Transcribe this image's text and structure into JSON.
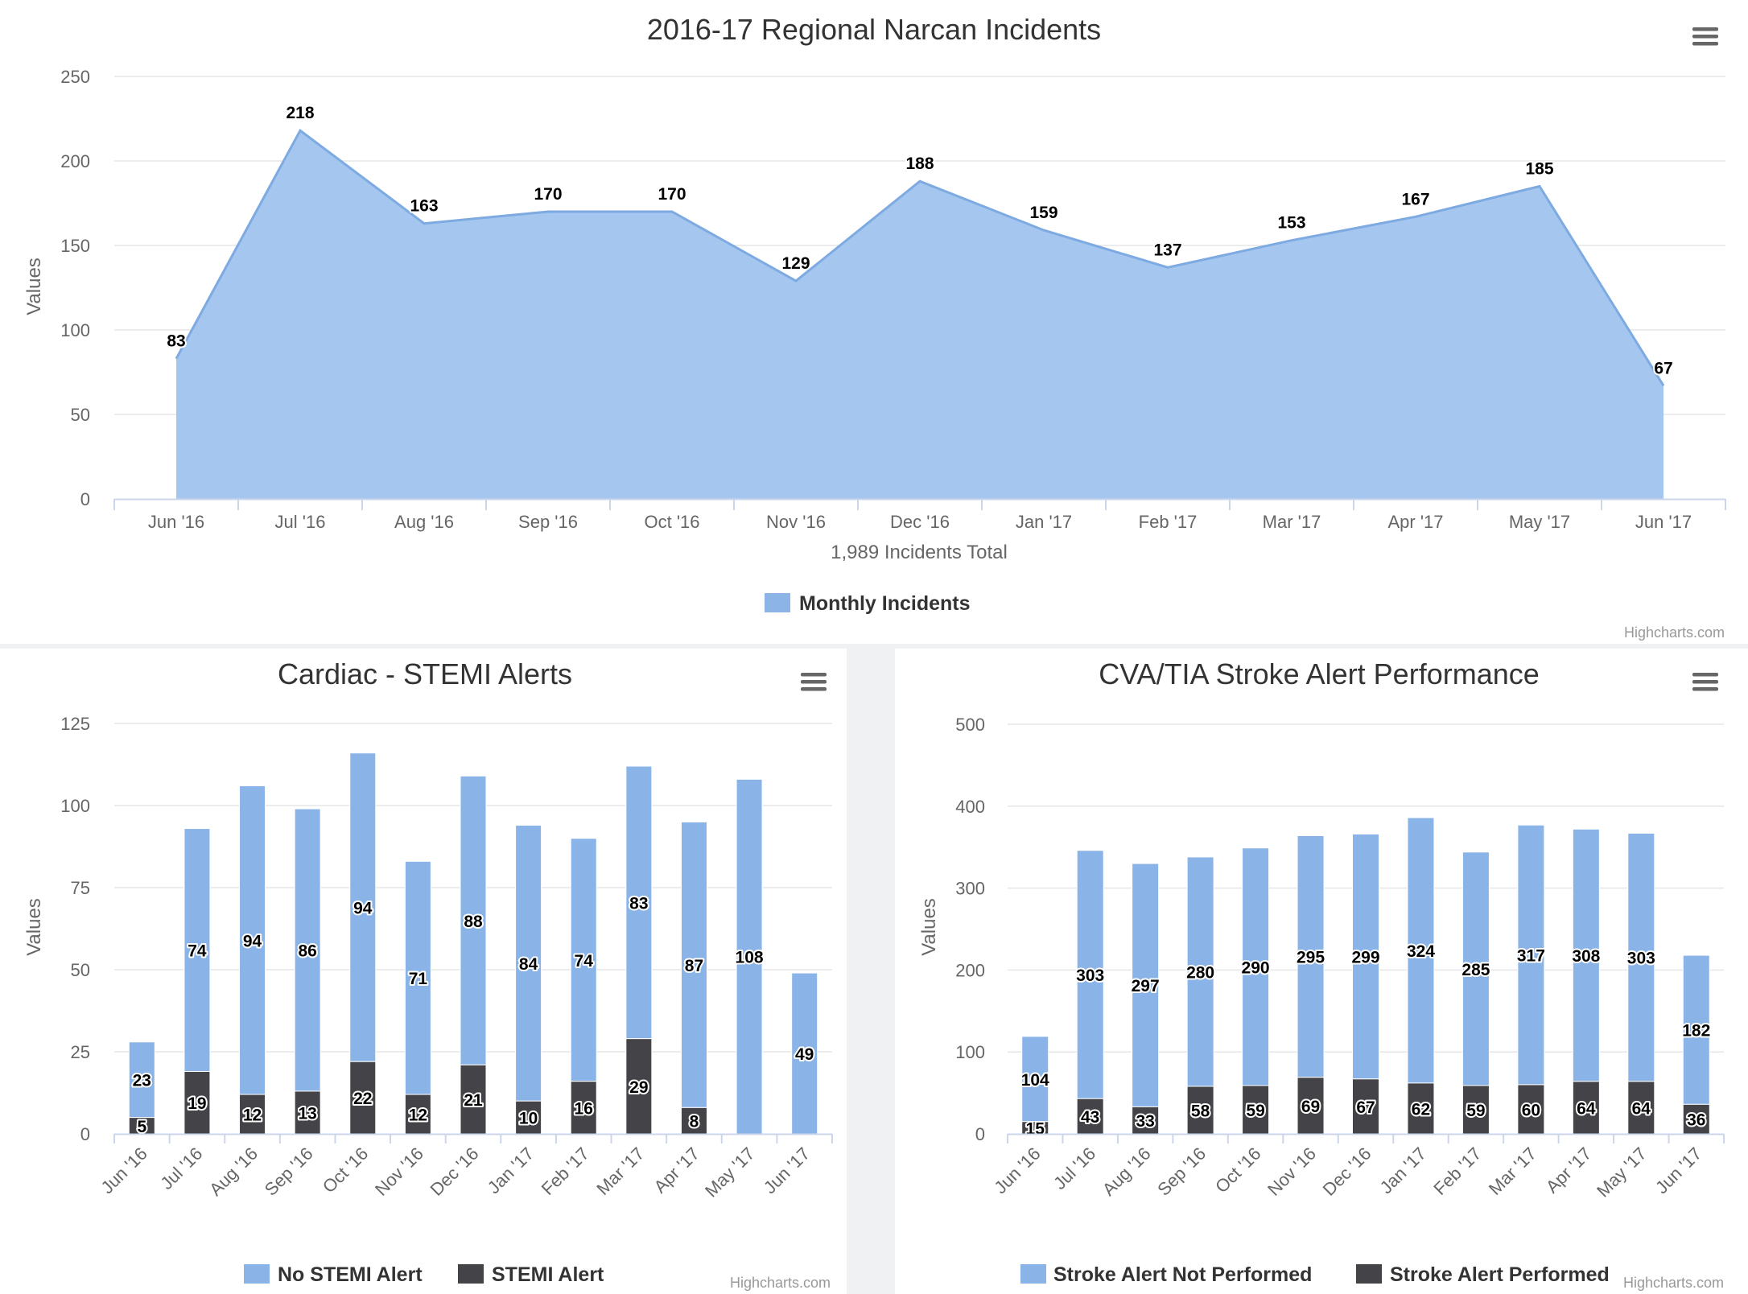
{
  "charts": {
    "narcan": {
      "menu_icon": "hamburger-menu-icon",
      "credits": "Highcharts.com",
      "chart_data": {
        "type": "area",
        "title": "2016-17 Regional Narcan Incidents",
        "xlabel": "1,989 Incidents Total",
        "ylabel": "Values",
        "categories": [
          "Jun '16",
          "Jul '16",
          "Aug '16",
          "Sep '16",
          "Oct '16",
          "Nov '16",
          "Dec '16",
          "Jan '17",
          "Feb '17",
          "Mar '17",
          "Apr '17",
          "May '17",
          "Jun '17"
        ],
        "ylim": [
          0,
          250
        ],
        "yticks": [
          0,
          50,
          100,
          150,
          200,
          250
        ],
        "series": [
          {
            "name": "Monthly Incidents",
            "color": "#8cb4e6",
            "values": [
              83,
              218,
              163,
              170,
              170,
              129,
              188,
              159,
              137,
              153,
              167,
              185,
              67
            ]
          }
        ],
        "legend": "bottom-center",
        "grid": true
      }
    },
    "stemi": {
      "menu_icon": "hamburger-menu-icon",
      "credits": "Highcharts.com",
      "chart_data": {
        "type": "bar",
        "stacked": true,
        "title": "Cardiac - STEMI Alerts",
        "ylabel": "Values",
        "categories": [
          "Jun '16",
          "Jul '16",
          "Aug '16",
          "Sep '16",
          "Oct '16",
          "Nov '16",
          "Dec '16",
          "Jan '17",
          "Feb '17",
          "Mar '17",
          "Apr '17",
          "May '17",
          "Jun '17"
        ],
        "ylim": [
          0,
          125
        ],
        "yticks": [
          0,
          25,
          50,
          75,
          100,
          125
        ],
        "series": [
          {
            "name": "No STEMI Alert",
            "color": "#8ab4e8",
            "values": [
              23,
              74,
              94,
              86,
              94,
              71,
              88,
              84,
              74,
              83,
              87,
              108,
              49
            ]
          },
          {
            "name": "STEMI Alert",
            "color": "#434348",
            "values": [
              5,
              19,
              12,
              13,
              22,
              12,
              21,
              10,
              16,
              29,
              8,
              null,
              null
            ]
          }
        ],
        "legend": "bottom-center",
        "grid": true
      }
    },
    "stroke": {
      "menu_icon": "hamburger-menu-icon",
      "credits": "Highcharts.com",
      "chart_data": {
        "type": "bar",
        "stacked": true,
        "title": "CVA/TIA Stroke Alert Performance",
        "ylabel": "Values",
        "categories": [
          "Jun '16",
          "Jul '16",
          "Aug '16",
          "Sep '16",
          "Oct '16",
          "Nov '16",
          "Dec '16",
          "Jan '17",
          "Feb '17",
          "Mar '17",
          "Apr '17",
          "May '17",
          "Jun '17"
        ],
        "ylim": [
          0,
          500
        ],
        "yticks": [
          0,
          100,
          200,
          300,
          400,
          500
        ],
        "series": [
          {
            "name": "Stroke Alert Not Performed",
            "color": "#8ab4e8",
            "values": [
              104,
              303,
              297,
              280,
              290,
              295,
              299,
              324,
              285,
              317,
              308,
              303,
              182
            ]
          },
          {
            "name": "Stroke Alert Performed",
            "color": "#434348",
            "values": [
              15,
              43,
              33,
              58,
              59,
              69,
              67,
              62,
              59,
              60,
              64,
              64,
              36
            ]
          }
        ],
        "legend": "bottom-center",
        "grid": true
      }
    }
  }
}
